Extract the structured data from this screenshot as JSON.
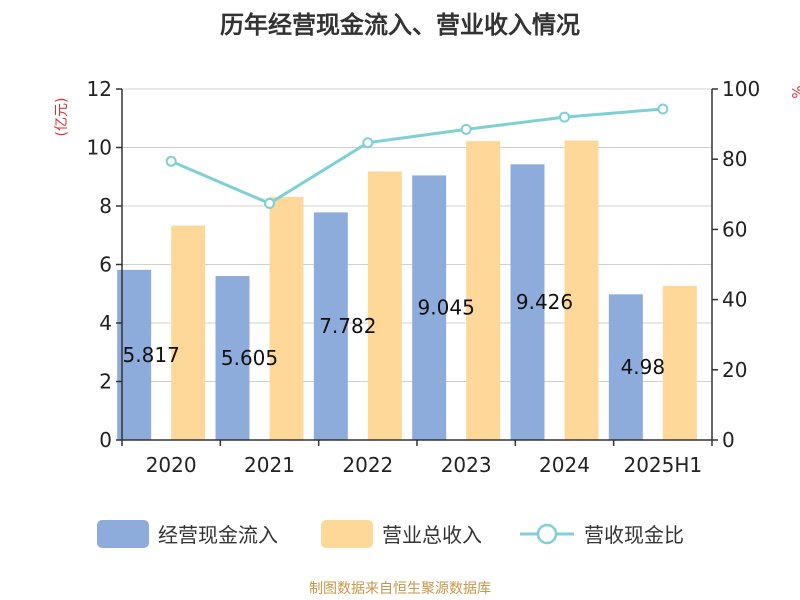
{
  "chart_data": {
    "type": "bar",
    "title": "历年经营现金流入、营业收入情况",
    "categories": [
      "2020",
      "2021",
      "2022",
      "2023",
      "2024",
      "2025H1"
    ],
    "series": [
      {
        "name": "经营现金流入",
        "type": "bar",
        "axis": "left",
        "color": "#8eacdb",
        "values": [
          5.817,
          5.605,
          7.782,
          9.045,
          9.426,
          4.98
        ],
        "labels": [
          "5.817",
          "5.605",
          "7.782",
          "9.045",
          "9.426",
          "4.98"
        ]
      },
      {
        "name": "营业总收入",
        "type": "bar",
        "axis": "left",
        "color": "#fdd898",
        "values": [
          7.33,
          8.31,
          9.18,
          10.22,
          10.24,
          5.27
        ]
      },
      {
        "name": "营收现金比",
        "type": "line",
        "axis": "right",
        "color": "#7dd0d6",
        "values": [
          79.4,
          67.4,
          84.7,
          88.5,
          92.0,
          94.3
        ]
      }
    ],
    "y_left": {
      "label": "(亿元)",
      "min": 0,
      "max": 12,
      "ticks": [
        0,
        2,
        4,
        6,
        8,
        10,
        12
      ],
      "label_color": "#e03030"
    },
    "y_right": {
      "label": "%",
      "min": 0,
      "max": 100,
      "ticks": [
        0,
        20,
        40,
        60,
        80,
        100
      ],
      "label_color": "#e03030"
    },
    "grid": true,
    "legend": "bottom",
    "source": "制图数据来自恒生聚源数据库",
    "source_color": "#c8964a"
  }
}
